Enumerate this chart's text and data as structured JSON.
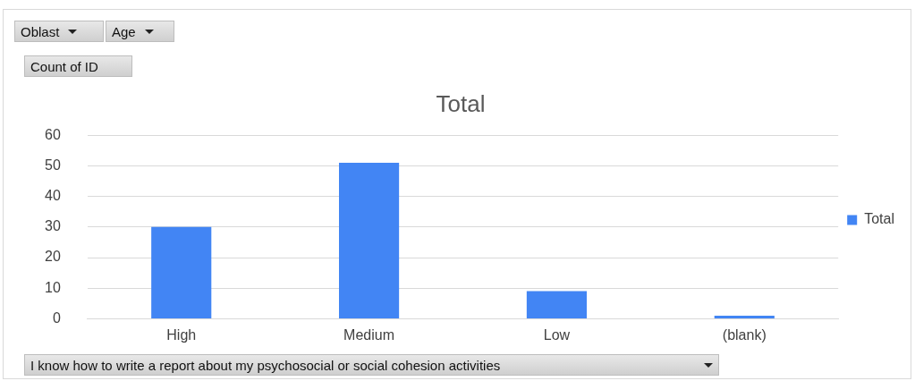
{
  "chart_data": {
    "type": "bar",
    "title": "Total",
    "categories": [
      "High",
      "Medium",
      "Low",
      "(blank)"
    ],
    "series": [
      {
        "name": "Total",
        "color": "#4285f4",
        "values": [
          30,
          51,
          9,
          1
        ]
      }
    ],
    "ylim": [
      0,
      60
    ],
    "yticks": [
      0,
      10,
      20,
      30,
      40,
      50,
      60
    ],
    "grid": "y",
    "legend": "right",
    "annotations": [
      "Oblast",
      "Age",
      "Count of ID",
      "I know how to write a report about my psychosocial or social cohesion activities"
    ]
  }
}
